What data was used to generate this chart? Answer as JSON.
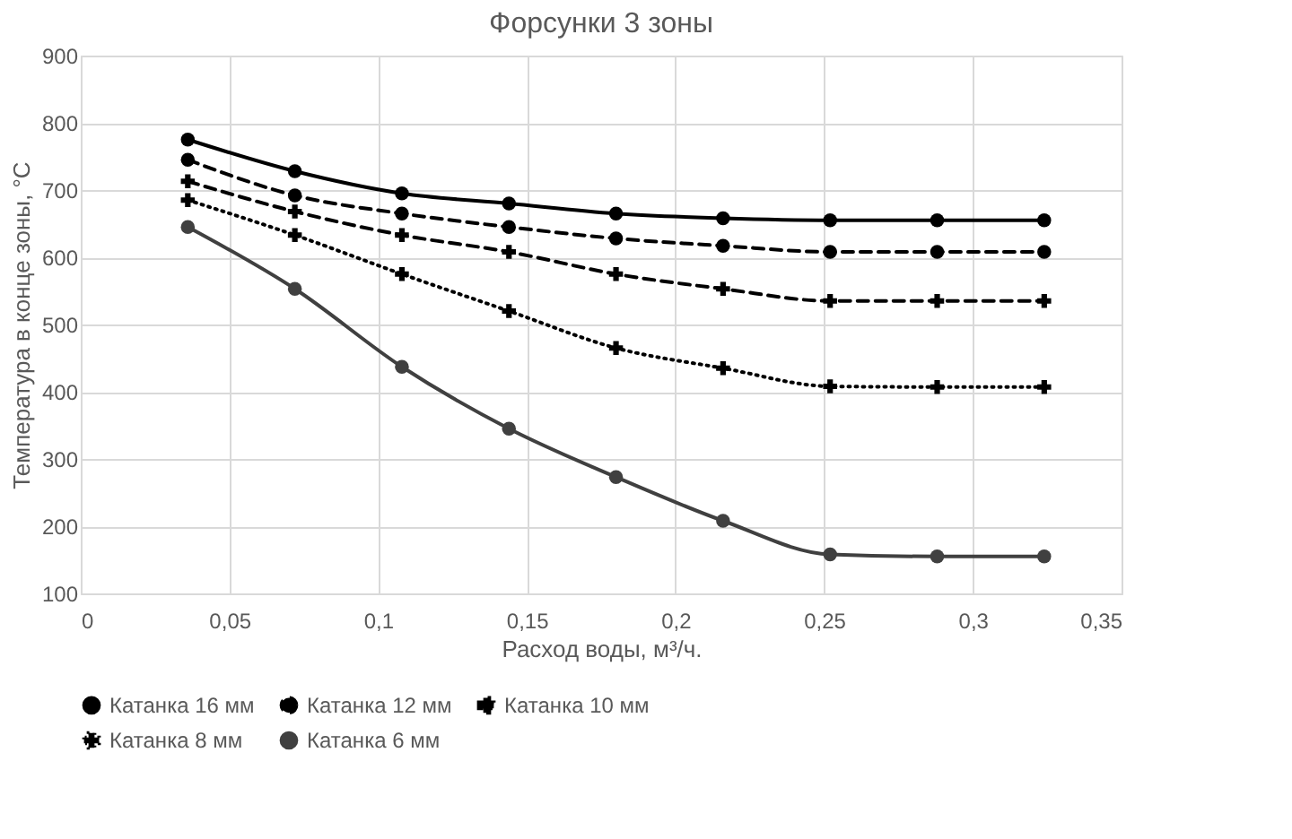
{
  "chart_data": {
    "type": "line",
    "title": "Форсунки 3 зоны",
    "xlabel": "Расход воды, м³/ч.",
    "ylabel": "Температура в конце зоны, °C",
    "x": [
      0.036,
      0.072,
      0.108,
      0.144,
      0.18,
      0.216,
      0.252,
      0.288,
      0.324
    ],
    "series": [
      {
        "name": "Катанка 16 мм",
        "color": "#000000",
        "marker": "circle",
        "line_style": "solid",
        "values": [
          775,
          728,
          695,
          680,
          665,
          658,
          655,
          655,
          655
        ]
      },
      {
        "name": "Катанка 12 мм",
        "color": "#000000",
        "marker": "circle",
        "line_style": "dashed",
        "values": [
          745,
          692,
          665,
          645,
          628,
          617,
          608,
          608,
          608
        ]
      },
      {
        "name": "Катанка 10 мм",
        "color": "#000000",
        "marker": "cross",
        "line_style": "dashed",
        "values": [
          713,
          668,
          633,
          608,
          575,
          553,
          535,
          535,
          535
        ]
      },
      {
        "name": "Катанка 8 мм",
        "color": "#000000",
        "marker": "cross",
        "line_style": "dotted",
        "values": [
          685,
          633,
          575,
          520,
          465,
          435,
          408,
          407,
          407
        ]
      },
      {
        "name": "Катанка 6 мм",
        "color": "#404040",
        "marker": "circle",
        "line_style": "solid",
        "values": [
          645,
          553,
          437,
          345,
          273,
          208,
          158,
          155,
          155
        ]
      }
    ],
    "xlim": [
      0,
      0.35
    ],
    "ylim": [
      100,
      900
    ],
    "xticks": [
      0,
      {
        "value": 0.05,
        "label": "0,05"
      },
      {
        "value": 0.1,
        "label": "0,1"
      },
      {
        "value": 0.15,
        "label": "0,15"
      },
      {
        "value": 0.2,
        "label": "0,2"
      },
      {
        "value": 0.25,
        "label": "0,25"
      },
      {
        "value": 0.3,
        "label": "0,3"
      },
      {
        "value": 0.35,
        "label": "0,35"
      }
    ],
    "yticks": [
      100,
      200,
      300,
      400,
      500,
      600,
      700,
      800,
      900
    ],
    "grid": true,
    "legend": "bottom"
  }
}
